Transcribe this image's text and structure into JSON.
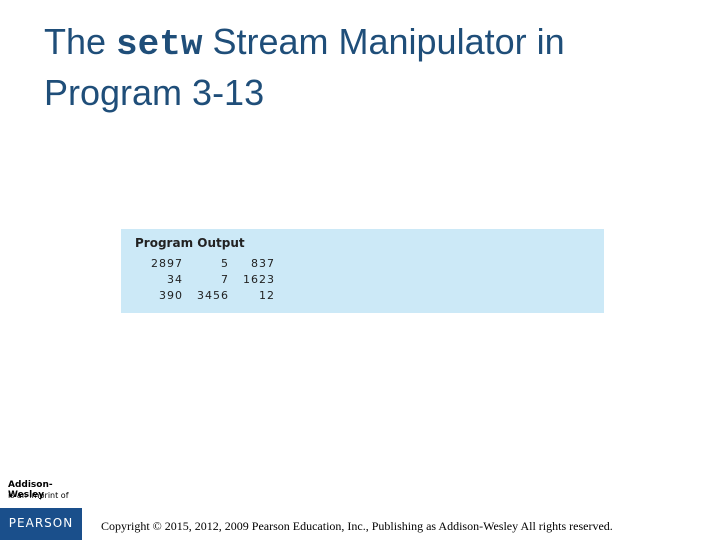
{
  "slide": {
    "title_prefix": "The ",
    "title_code": "setw",
    "title_suffix_line1": " Stream Manipulator in",
    "title_line2": "Program 3-13"
  },
  "program_output": {
    "heading": "Program Output",
    "rows": [
      [
        "2897",
        "5",
        "837"
      ],
      [
        "34",
        "7",
        "1623"
      ],
      [
        "390",
        "3456",
        "12"
      ]
    ]
  },
  "publisher": {
    "imprint_name": "Addison-Wesley",
    "imprint_text": "is an imprint of",
    "logo_text": "PEARSON"
  },
  "footer": {
    "copyright": "Copyright © 2015, 2012, 2009 Pearson Education, Inc., Publishing as Addison-Wesley All rights reserved."
  },
  "colors": {
    "title": "#1f4e79",
    "output_background": "#cce9f7",
    "pearson_blue": "#1a4f8b"
  }
}
